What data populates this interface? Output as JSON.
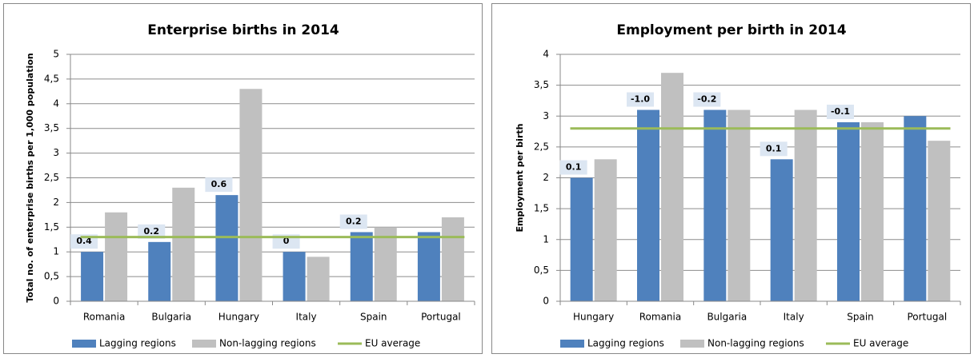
{
  "chart_data": [
    {
      "type": "bar",
      "title": "Enterprise births in 2014",
      "y_label": "Total no. of enterprise births per 1,000 population",
      "categories": [
        "Romania",
        "Bulgaria",
        "Hungary",
        "Italy",
        "Spain",
        "Portugal"
      ],
      "series": [
        {
          "name": "Lagging regions",
          "color": "#4f81bd",
          "values": [
            1.0,
            1.2,
            2.15,
            1.0,
            1.4,
            1.4
          ]
        },
        {
          "name": "Non-lagging regions",
          "color": "#c0c0c0",
          "values": [
            1.8,
            2.3,
            4.3,
            0.9,
            1.5,
            1.7
          ]
        },
        {
          "name": "EU average",
          "color": "#9bbb59",
          "kind": "line",
          "values": [
            1.3,
            1.3,
            1.3,
            1.3,
            1.3,
            1.3
          ]
        }
      ],
      "bar_labels": [
        "0.4",
        "0.2",
        "0.6",
        "0",
        "0.2",
        null
      ],
      "ylim": [
        0,
        5
      ],
      "yticks": [
        0,
        {
          "value": 0.5,
          "label": "0,5"
        },
        1,
        {
          "value": 1.5,
          "label": "1,5"
        },
        2,
        {
          "value": 2.5,
          "label": "2,5"
        },
        3,
        {
          "value": 3.5,
          "label": "3,5"
        },
        4,
        {
          "value": 4.5,
          "label": "4,5"
        },
        5
      ],
      "grid": true
    },
    {
      "type": "bar",
      "title": "Employment  per birth in 2014",
      "y_label": "Employment  per birth",
      "categories": [
        "Hungary",
        "Romania",
        "Bulgaria",
        "Italy",
        "Spain",
        "Portugal"
      ],
      "series": [
        {
          "name": "Lagging regions",
          "color": "#4f81bd",
          "values": [
            2.0,
            3.1,
            3.1,
            2.3,
            2.9,
            3.0
          ]
        },
        {
          "name": "Non-lagging regions",
          "color": "#c0c0c0",
          "values": [
            2.3,
            3.7,
            3.1,
            3.1,
            2.9,
            2.6
          ]
        },
        {
          "name": "EU average",
          "color": "#9bbb59",
          "kind": "line",
          "values": [
            2.8,
            2.8,
            2.8,
            2.8,
            2.8,
            2.8
          ]
        }
      ],
      "bar_labels": [
        "0.1",
        "-1.0",
        "-0.2",
        "0.1",
        "-0.1",
        null
      ],
      "ylim": [
        0,
        4
      ],
      "yticks": [
        0,
        {
          "value": 0.5,
          "label": "0,5"
        },
        1,
        {
          "value": 1.5,
          "label": "1,5"
        },
        2,
        {
          "value": 2.5,
          "label": "2,5"
        },
        3,
        {
          "value": 3.5,
          "label": "3,5"
        },
        4
      ],
      "grid": true
    }
  ]
}
